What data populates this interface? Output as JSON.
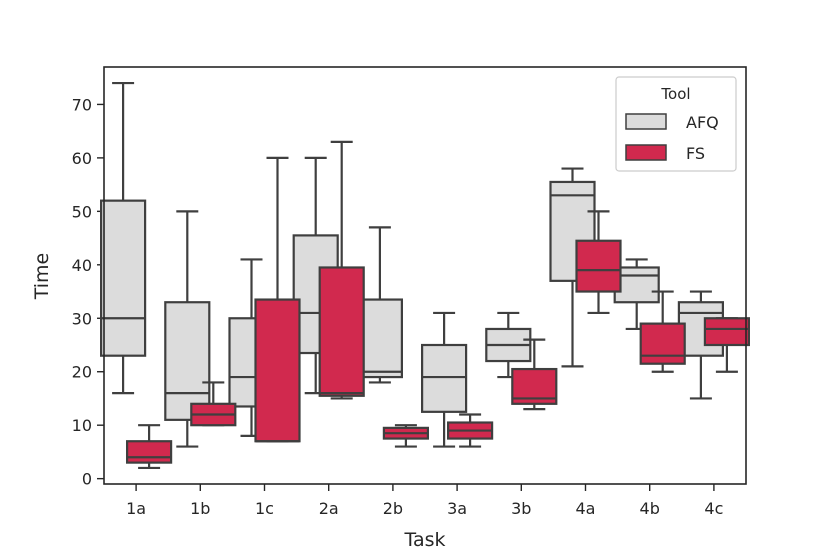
{
  "chart_data": {
    "type": "boxplot",
    "title": "",
    "xlabel": "Task",
    "ylabel": "Time",
    "ylim": [
      -1,
      77
    ],
    "yticks": [
      0,
      10,
      20,
      30,
      40,
      50,
      60,
      70
    ],
    "categories": [
      "1a",
      "1b",
      "1c",
      "2a",
      "2b",
      "3a",
      "3b",
      "4a",
      "4b",
      "4c"
    ],
    "legend": {
      "title": "Tool",
      "position": "top-right"
    },
    "series": [
      {
        "name": "AFQ",
        "color": "#dcdcdc",
        "boxes": [
          {
            "whislo": 16,
            "q1": 23,
            "med": 30,
            "q3": 52,
            "whishi": 74
          },
          {
            "whislo": 6,
            "q1": 11,
            "med": 16,
            "q3": 33,
            "whishi": 50
          },
          {
            "whislo": 8,
            "q1": 13.5,
            "med": 19,
            "q3": 30,
            "whishi": 41
          },
          {
            "whislo": 16,
            "q1": 23.5,
            "med": 31,
            "q3": 45.5,
            "whishi": 60
          },
          {
            "whislo": 18,
            "q1": 19,
            "med": 20,
            "q3": 33.5,
            "whishi": 47
          },
          {
            "whislo": 6,
            "q1": 12.5,
            "med": 19,
            "q3": 25,
            "whishi": 31
          },
          {
            "whislo": 19,
            "q1": 22,
            "med": 25,
            "q3": 28,
            "whishi": 31
          },
          {
            "whislo": 21,
            "q1": 37,
            "med": 53,
            "q3": 55.5,
            "whishi": 58
          },
          {
            "whislo": 28,
            "q1": 33,
            "med": 38,
            "q3": 39.5,
            "whishi": 41
          },
          {
            "whislo": 15,
            "q1": 23,
            "med": 31,
            "q3": 33,
            "whishi": 35
          }
        ]
      },
      {
        "name": "FS",
        "color": "#d1294e",
        "boxes": [
          {
            "whislo": 2,
            "q1": 3,
            "med": 4,
            "q3": 7,
            "whishi": 10
          },
          {
            "whislo": 10,
            "q1": 10,
            "med": 12,
            "q3": 14,
            "whishi": 18
          },
          {
            "whislo": 7,
            "q1": 7,
            "med": 7,
            "q3": 33.5,
            "whishi": 60
          },
          {
            "whislo": 15,
            "q1": 15.5,
            "med": 16,
            "q3": 39.5,
            "whishi": 63
          },
          {
            "whislo": 6,
            "q1": 7.5,
            "med": 8.5,
            "q3": 9.5,
            "whishi": 10
          },
          {
            "whislo": 6,
            "q1": 7.5,
            "med": 9,
            "q3": 10.5,
            "whishi": 12
          },
          {
            "whislo": 13,
            "q1": 14,
            "med": 15,
            "q3": 20.5,
            "whishi": 26
          },
          {
            "whislo": 31,
            "q1": 35,
            "med": 39,
            "q3": 44.5,
            "whishi": 50
          },
          {
            "whislo": 20,
            "q1": 21.5,
            "med": 23,
            "q3": 29,
            "whishi": 35
          },
          {
            "whislo": 20,
            "q1": 25,
            "med": 28,
            "q3": 30,
            "whishi": 30
          }
        ]
      }
    ]
  }
}
